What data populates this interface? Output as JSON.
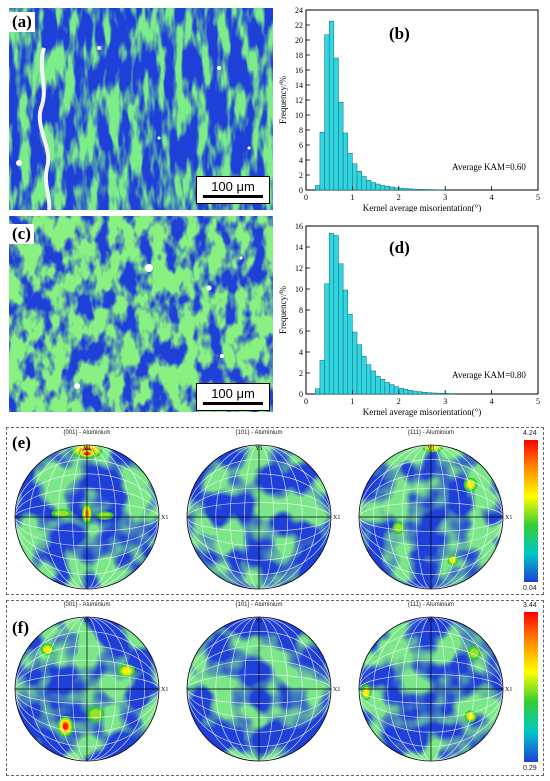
{
  "panels": {
    "a": {
      "letter": "(a)",
      "scale": "100 μm"
    },
    "b": {
      "letter": "(b)",
      "annotation": "Average KAM=0.60"
    },
    "c": {
      "letter": "(c)",
      "scale": "100 μm"
    },
    "d": {
      "letter": "(d)",
      "annotation": "Average KAM=0.80"
    },
    "e": {
      "letter": "(e)",
      "titles": [
        "{001} - Aluminium",
        "{101} - Aluminium",
        "{111} - Aluminium"
      ],
      "y_axis": "Y1",
      "x_axis": "X1",
      "cb_max": "4.24",
      "cb_min": "0.04"
    },
    "f": {
      "letter": "(f)",
      "titles": [
        "{001} - Aluminium",
        "{101} - Aluminium",
        "{111} - Aluminium"
      ],
      "y_axis": "Y1",
      "x_axis": "X1",
      "cb_max": "3.44",
      "cb_min": "0.29"
    }
  },
  "colors": {
    "map_blue": "#1e3fd8",
    "map_green": "#33cc33",
    "bar_fill": "#33d6e0",
    "bar_edge": "#0a6b78"
  },
  "chart_data": [
    {
      "type": "bar",
      "panel": "b",
      "xlabel": "Kernel average misorientation(°)",
      "ylabel": "Frequency/%",
      "xlim": [
        0,
        5
      ],
      "ylim": [
        0,
        24
      ],
      "xticks": [
        "0",
        "1",
        "2",
        "3",
        "4",
        "5"
      ],
      "yticks": [
        "0",
        "2",
        "4",
        "6",
        "8",
        "10",
        "12",
        "14",
        "16",
        "18",
        "20",
        "22",
        "24"
      ],
      "bin_width": 0.1,
      "x": [
        0.05,
        0.15,
        0.25,
        0.35,
        0.45,
        0.55,
        0.65,
        0.75,
        0.85,
        0.95,
        1.05,
        1.15,
        1.25,
        1.35,
        1.45,
        1.55,
        1.65,
        1.75,
        1.85,
        1.95,
        2.05,
        2.15,
        2.25,
        2.35,
        2.45,
        2.55,
        2.65,
        2.75,
        2.85,
        2.95
      ],
      "values": [
        0,
        0,
        0.6,
        7.7,
        20.7,
        22.5,
        17.6,
        11.7,
        7.6,
        4.9,
        3.5,
        2.5,
        1.8,
        1.3,
        1.0,
        0.8,
        0.6,
        0.5,
        0.4,
        0.3,
        0.25,
        0.2,
        0.15,
        0.12,
        0.1,
        0.08,
        0.06,
        0.05,
        0.04,
        0.03
      ]
    },
    {
      "type": "bar",
      "panel": "d",
      "xlabel": "Kernel average misorientation(°)",
      "ylabel": "Frequency/%",
      "xlim": [
        0,
        5
      ],
      "ylim": [
        0,
        16
      ],
      "xticks": [
        "0",
        "1",
        "2",
        "3",
        "4",
        "5"
      ],
      "yticks": [
        "0",
        "2",
        "4",
        "6",
        "8",
        "10",
        "12",
        "14",
        "16"
      ],
      "bin_width": 0.1,
      "x": [
        0.05,
        0.15,
        0.25,
        0.35,
        0.45,
        0.55,
        0.65,
        0.75,
        0.85,
        0.95,
        1.05,
        1.15,
        1.25,
        1.35,
        1.45,
        1.55,
        1.65,
        1.75,
        1.85,
        1.95,
        2.05,
        2.15,
        2.25,
        2.35,
        2.45,
        2.55,
        2.65,
        2.75,
        2.85,
        2.95,
        3.05,
        3.15
      ],
      "values": [
        0,
        0,
        0.5,
        3.2,
        10.5,
        15.3,
        15.1,
        12.4,
        9.9,
        7.6,
        5.9,
        4.7,
        3.6,
        2.8,
        2.2,
        1.7,
        1.4,
        1.1,
        0.9,
        0.7,
        0.55,
        0.45,
        0.35,
        0.28,
        0.22,
        0.17,
        0.13,
        0.1,
        0.08,
        0.06,
        0.05,
        0.04
      ]
    }
  ]
}
